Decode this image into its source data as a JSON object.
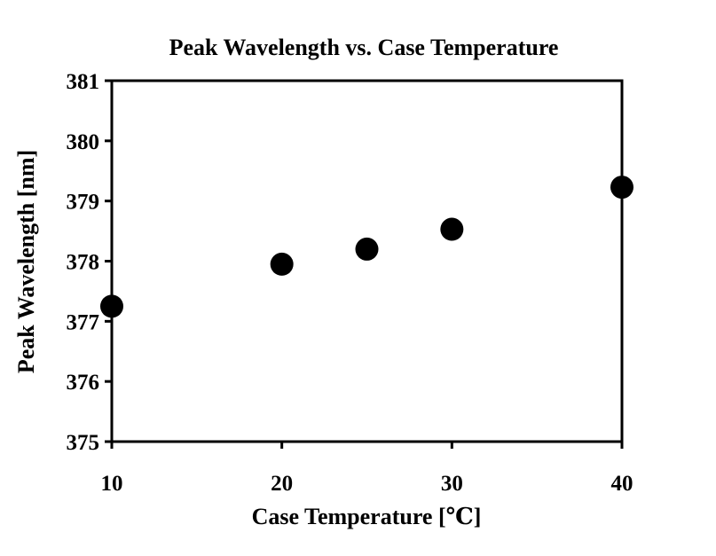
{
  "chart_data": {
    "type": "scatter",
    "title": "Peak Wavelength vs. Case Temperature",
    "xlabel": "Case Temperature [℃]",
    "ylabel": "Peak Wavelength [nm]",
    "xlim": [
      10,
      40
    ],
    "ylim": [
      375,
      381
    ],
    "xticks": [
      "10",
      "20",
      "30",
      "40"
    ],
    "yticks": [
      "375",
      "376",
      "377",
      "378",
      "379",
      "380",
      "381"
    ],
    "grid": false,
    "series": [
      {
        "points": [
          {
            "x": 10,
            "y": 377.25
          },
          {
            "x": 20,
            "y": 377.95
          },
          {
            "x": 25,
            "y": 378.2
          },
          {
            "x": 30,
            "y": 378.53
          },
          {
            "x": 40,
            "y": 379.23
          }
        ]
      }
    ],
    "colors": {
      "marker": "#000000",
      "axis": "#000000"
    }
  }
}
